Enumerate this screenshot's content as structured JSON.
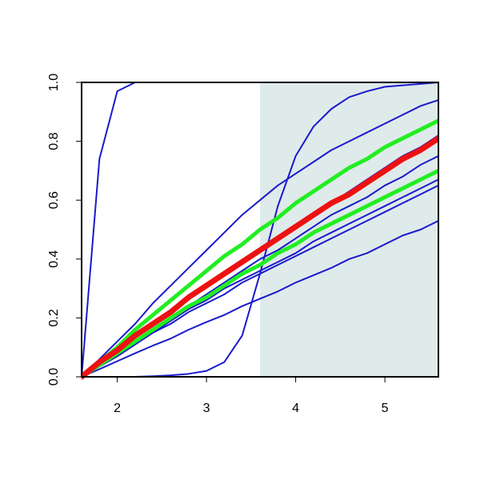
{
  "chart_data": {
    "type": "line",
    "x": [
      1.6,
      1.8,
      2.0,
      2.2,
      2.4,
      2.6,
      2.8,
      3.0,
      3.2,
      3.4,
      3.6,
      3.8,
      4.0,
      4.2,
      4.4,
      4.6,
      4.8,
      5.0,
      5.2,
      5.4,
      5.6
    ],
    "xlim": [
      1.6,
      5.6
    ],
    "ylim": [
      0,
      1
    ],
    "xticks": [
      2,
      3,
      4,
      5
    ],
    "yticks": [
      {
        "value": 0,
        "label": "0.0"
      },
      0.2,
      0.4,
      0.6,
      0.8,
      {
        "value": 1,
        "label": "1.0"
      }
    ],
    "shade": {
      "xmin": 3.6,
      "xmax": 5.6,
      "color": "#dfeaea"
    },
    "series": [
      {
        "color": "#1a1acc",
        "width": 2,
        "values": [
          0,
          0.74,
          0.97,
          1,
          1,
          1,
          1,
          1,
          1,
          1,
          1,
          1,
          1,
          1,
          1,
          1,
          1,
          1,
          1,
          1,
          1
        ]
      },
      {
        "color": "#1a1acc",
        "width": 2,
        "values": [
          0,
          0,
          0,
          0,
          0.002,
          0.005,
          0.01,
          0.02,
          0.05,
          0.14,
          0.35,
          0.58,
          0.75,
          0.85,
          0.91,
          0.95,
          0.97,
          0.985,
          0.99,
          0.995,
          1
        ]
      },
      {
        "color": "#1a1acc",
        "width": 2,
        "values": [
          0,
          0.06,
          0.12,
          0.18,
          0.25,
          0.31,
          0.37,
          0.43,
          0.49,
          0.55,
          0.6,
          0.65,
          0.69,
          0.73,
          0.77,
          0.8,
          0.83,
          0.86,
          0.89,
          0.92,
          0.94
        ]
      },
      {
        "color": "#1a1acc",
        "width": 2,
        "values": [
          0,
          0.05,
          0.09,
          0.14,
          0.18,
          0.22,
          0.27,
          0.31,
          0.35,
          0.39,
          0.43,
          0.47,
          0.51,
          0.55,
          0.59,
          0.63,
          0.67,
          0.71,
          0.75,
          0.78,
          0.82
        ]
      },
      {
        "color": "#1a1acc",
        "width": 2,
        "values": [
          0,
          0.04,
          0.08,
          0.12,
          0.16,
          0.2,
          0.24,
          0.28,
          0.32,
          0.36,
          0.4,
          0.43,
          0.47,
          0.51,
          0.55,
          0.58,
          0.61,
          0.65,
          0.68,
          0.72,
          0.75
        ]
      },
      {
        "color": "#1a1acc",
        "width": 2,
        "values": [
          0,
          0.035,
          0.07,
          0.11,
          0.15,
          0.19,
          0.23,
          0.26,
          0.3,
          0.33,
          0.36,
          0.39,
          0.42,
          0.46,
          0.49,
          0.52,
          0.55,
          0.58,
          0.61,
          0.64,
          0.67
        ]
      },
      {
        "color": "#1a1acc",
        "width": 2,
        "values": [
          0,
          0.035,
          0.07,
          0.11,
          0.15,
          0.18,
          0.22,
          0.25,
          0.28,
          0.32,
          0.35,
          0.38,
          0.41,
          0.44,
          0.47,
          0.5,
          0.53,
          0.56,
          0.59,
          0.62,
          0.65
        ]
      },
      {
        "color": "#1a1acc",
        "width": 2,
        "values": [
          0,
          0.026,
          0.053,
          0.08,
          0.106,
          0.13,
          0.16,
          0.186,
          0.21,
          0.24,
          0.265,
          0.29,
          0.32,
          0.345,
          0.37,
          0.4,
          0.42,
          0.45,
          0.48,
          0.5,
          0.53
        ]
      },
      {
        "color": "#22ee22",
        "width": 5,
        "values": [
          0,
          0.05,
          0.1,
          0.16,
          0.21,
          0.26,
          0.31,
          0.36,
          0.41,
          0.45,
          0.5,
          0.54,
          0.59,
          0.63,
          0.67,
          0.71,
          0.74,
          0.78,
          0.81,
          0.84,
          0.87
        ]
      },
      {
        "color": "#22ee22",
        "width": 5,
        "values": [
          0,
          0.04,
          0.08,
          0.12,
          0.16,
          0.2,
          0.24,
          0.27,
          0.31,
          0.35,
          0.38,
          0.42,
          0.45,
          0.49,
          0.52,
          0.55,
          0.58,
          0.61,
          0.64,
          0.67,
          0.7
        ]
      },
      {
        "color": "#ee1111",
        "width": 7,
        "values": [
          0,
          0.05,
          0.09,
          0.14,
          0.18,
          0.22,
          0.27,
          0.31,
          0.35,
          0.39,
          0.43,
          0.47,
          0.51,
          0.55,
          0.59,
          0.62,
          0.66,
          0.7,
          0.74,
          0.77,
          0.81
        ]
      }
    ]
  }
}
